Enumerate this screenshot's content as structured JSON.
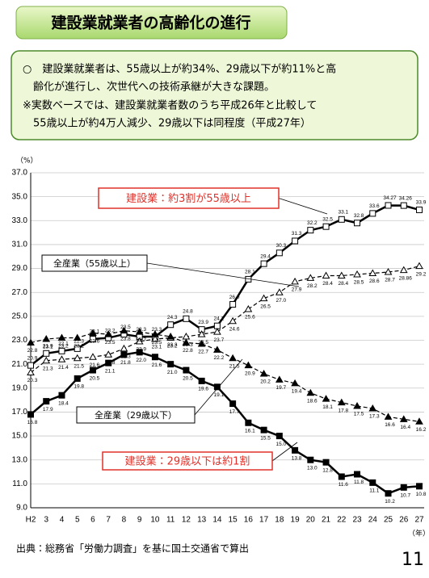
{
  "header": {
    "title": "建設業就業者の高齢化の進行",
    "summary": [
      "○　建設業就業者は、55歳以上が約34%、29歳以下が約11%と高",
      "　齢化が進行し、次世代への技術承継が大きな課題。",
      "※実数ベースでは、建設業就業者数のうち平成26年と比較して",
      "　55歳以上が約4万人減少、29歳以下は同程度（平成27年）"
    ]
  },
  "chart_data": {
    "type": "line",
    "y_unit": "（%）",
    "x_unit": "（年）",
    "categories": [
      "H2",
      "3",
      "4",
      "5",
      "6",
      "7",
      "8",
      "9",
      "10",
      "11",
      "12",
      "13",
      "14",
      "15",
      "16",
      "17",
      "18",
      "19",
      "20",
      "21",
      "22",
      "23",
      "24",
      "25",
      "26",
      "27"
    ],
    "ylim": [
      9,
      37
    ],
    "yticks": [
      {
        "value": 9,
        "label": "9.0"
      },
      {
        "value": 11,
        "label": "11.0"
      },
      {
        "value": 13,
        "label": "13.0"
      },
      {
        "value": 15,
        "label": "15.0"
      },
      {
        "value": 17,
        "label": "17.0"
      },
      {
        "value": 19,
        "label": "19.0"
      },
      {
        "value": 21,
        "label": "21.0"
      },
      {
        "value": 23,
        "label": "23.0"
      },
      {
        "value": 25,
        "label": "25.0"
      },
      {
        "value": 27,
        "label": "27.0"
      },
      {
        "value": 29,
        "label": "29.0"
      },
      {
        "value": 31,
        "label": "31.0"
      },
      {
        "value": 33,
        "label": "33.0"
      },
      {
        "value": 35,
        "label": "35.0"
      },
      {
        "value": 37,
        "label": "37.0"
      }
    ],
    "grid": true,
    "series": [
      {
        "name": "建設業：約3割が55歳以上",
        "color": "#000000",
        "marker": "square-open",
        "dash": false,
        "width": 2.5,
        "label_side": "above",
        "values": [
          20.9,
          21.9,
          22.1,
          22.3,
          23.1,
          23.2,
          23.5,
          23.3,
          23.3,
          24.3,
          24.8,
          23.9,
          24.2,
          26.0,
          28.1,
          29.4,
          30.3,
          31.3,
          32.2,
          32.5,
          33.1,
          32.8,
          33.6,
          34.27,
          34.26,
          33.9
        ],
        "value_labels": [
          "20.9",
          "21.9",
          "22.1",
          "22.3",
          "23.1",
          "23.2",
          "23.5",
          "23.3",
          "23.3",
          "24.3",
          "24.8",
          "23.9",
          "24.2",
          "26.0",
          "28.1",
          "29.4",
          "30.3",
          "31.3",
          "32.2",
          "32.5",
          "33.1",
          "32.8",
          "33.6",
          "34.27",
          "34.26",
          "33.9"
        ]
      },
      {
        "name": "全産業（55歳以上）",
        "color": "#000000",
        "marker": "triangle-open",
        "dash": true,
        "width": 1.2,
        "label_side": "below",
        "values": [
          20.3,
          21.3,
          21.4,
          21.5,
          21.6,
          21.8,
          22.3,
          22.9,
          23.1,
          23.2,
          23.3,
          23.5,
          23.7,
          24.6,
          25.6,
          26.5,
          27.0,
          27.9,
          28.2,
          28.4,
          28.4,
          28.5,
          28.6,
          28.7,
          28.86,
          29.2
        ],
        "value_labels": [
          "20.3",
          "21.3",
          "21.4",
          "21.5",
          "21.6",
          "21.8",
          "22.3",
          "22.9",
          "23.1",
          "23.2",
          "23.3",
          "23.5",
          "23.7",
          "24.6",
          "25.6",
          "26.5",
          "27.0",
          "27.9",
          "28.2",
          "28.4",
          "28.4",
          "28.5",
          "28.6",
          "28.7",
          "28.86",
          "29.2"
        ]
      },
      {
        "name": "全産業（29歳以下）",
        "color": "#000000",
        "marker": "triangle",
        "dash": true,
        "width": 1.2,
        "label_side": "below",
        "values": [
          22.8,
          23.1,
          23.2,
          23.2,
          23.6,
          23.5,
          23.8,
          23.7,
          23.5,
          23.3,
          22.8,
          22.7,
          22.2,
          21.5,
          20.9,
          20.2,
          19.7,
          19.4,
          18.6,
          18.1,
          17.8,
          17.5,
          17.3,
          16.6,
          16.4,
          16.2
        ],
        "value_labels": [
          "22.8",
          "23.1",
          "23.2",
          "23.2",
          "23.6",
          "23.5",
          "23.8",
          "23.7",
          "23.5",
          "23.3",
          "22.8",
          "22.7",
          "22.2",
          "21.5",
          "20.9",
          "20.2",
          "19.7",
          "19.4",
          "18.6",
          "18.1",
          "17.8",
          "17.5",
          "17.3",
          "16.6",
          "16.4",
          "16.2"
        ]
      },
      {
        "name": "建設業：29歳以下は約1割",
        "color": "#000000",
        "marker": "square",
        "dash": false,
        "width": 2.5,
        "label_side": "below",
        "values": [
          16.8,
          17.9,
          18.4,
          19.8,
          20.5,
          21.1,
          21.8,
          22.0,
          21.6,
          21.0,
          20.5,
          19.6,
          19.1,
          17.7,
          16.1,
          15.5,
          15.0,
          13.8,
          13.0,
          12.8,
          11.6,
          11.8,
          11.1,
          10.2,
          10.7,
          10.8
        ],
        "value_labels": [
          "16.8",
          "17.9",
          "18.4",
          "19.8",
          "20.5",
          "21.1",
          "21.8",
          "22.0",
          "21.6",
          "21.0",
          "20.5",
          "19.6",
          "19.1",
          "17.7",
          "16.1",
          "15.5",
          "15.0",
          "13.8",
          "13.0",
          "12.8",
          "11.6",
          "11.8",
          "11.1",
          "10.2",
          "10.7",
          "10.8"
        ]
      }
    ]
  },
  "footer": {
    "source": "出典：総務省「労働力調査」を基に国土交通省で算出",
    "page": "11"
  }
}
